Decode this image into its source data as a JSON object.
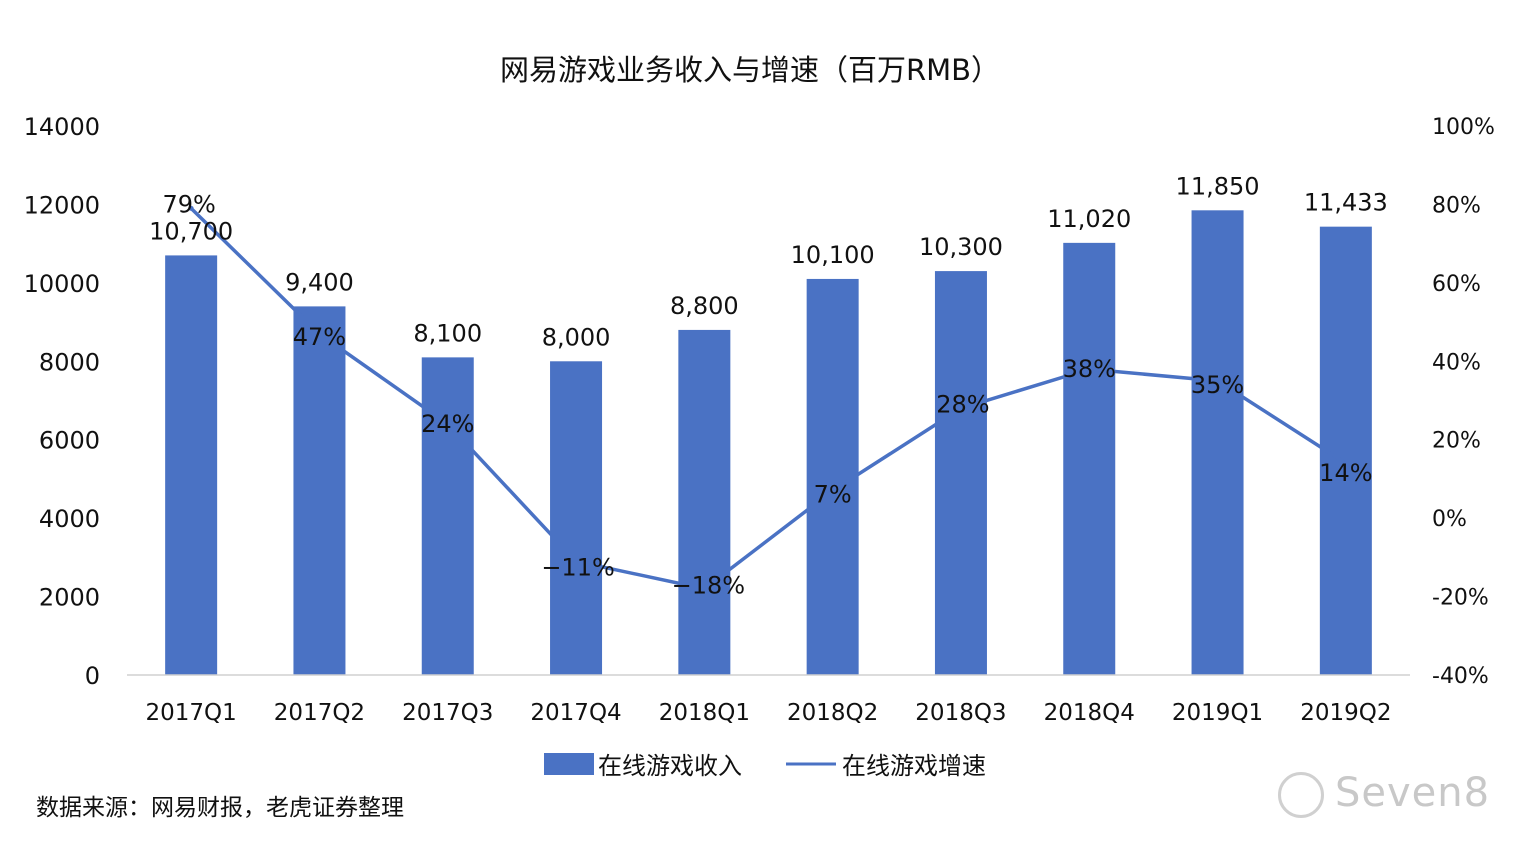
{
  "chart_data": {
    "type": "bar",
    "title": "网易游戏业务收入与增速（百万RMB）",
    "categories": [
      "2017Q1",
      "2017Q2",
      "2017Q3",
      "2017Q4",
      "2018Q1",
      "2018Q2",
      "2018Q3",
      "2018Q4",
      "2019Q1",
      "2019Q2"
    ],
    "series": [
      {
        "name": "在线游戏收入",
        "type": "bar",
        "axis": "left",
        "values": [
          10700,
          9400,
          8100,
          8000,
          8800,
          10100,
          10300,
          11020,
          11850,
          11433
        ],
        "labels": [
          "10,700",
          "9,400",
          "8,100",
          "8,000",
          "8,800",
          "10,100",
          "10,300",
          "11,020",
          "11,850",
          "11,433"
        ]
      },
      {
        "name": "在线游戏增速",
        "type": "line",
        "axis": "right",
        "values": [
          79,
          47,
          24,
          -11,
          -18,
          7,
          28,
          38,
          35,
          14
        ],
        "labels": [
          "79%",
          "47%",
          "24%",
          "−11%",
          "−18%",
          "7%",
          "28%",
          "38%",
          "35%",
          "14%"
        ]
      }
    ],
    "y_left": {
      "ylim": [
        0,
        14000
      ],
      "ticks": [
        "0",
        "2000",
        "4000",
        "6000",
        "8000",
        "10000",
        "12000",
        "14000"
      ]
    },
    "y_right": {
      "ylim": [
        -40,
        100
      ],
      "ticks": [
        "-40%",
        "-20%",
        "0%",
        "20%",
        "40%",
        "60%",
        "80%",
        "100%"
      ]
    },
    "grid": false,
    "legend_placement": "bottom",
    "colors": {
      "bar": "#4a72c4",
      "line": "#4a72c4"
    }
  },
  "source_note": "数据来源：网易财报，老虎证券整理",
  "watermark": "Seven8"
}
